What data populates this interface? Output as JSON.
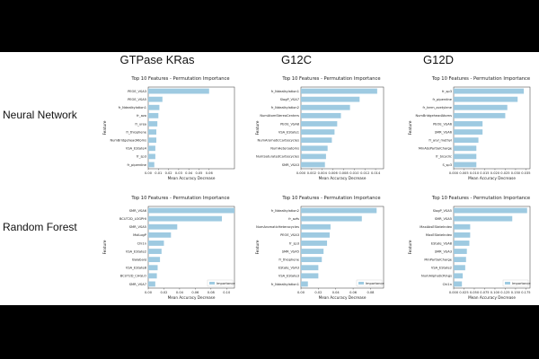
{
  "column_titles": [
    "GTPase KRas",
    "G12C",
    "G12D"
  ],
  "row_labels": [
    "Neural Network",
    "Random Forest"
  ],
  "chart_data": [
    {
      "type": "bar",
      "orientation": "horizontal",
      "title": "Top 10 Features - Permutation Importance",
      "xlabel": "Mean Accuracy Decrease",
      "ylabel": "Feature",
      "xlim": [
        0,
        0.085
      ],
      "xticks": [
        0,
        0.01,
        0.02,
        0.03,
        0.04,
        0.05,
        0.06
      ],
      "xtick_labels": [
        "0.00",
        "0.01",
        "0.02",
        "0.03",
        "0.04",
        "0.05",
        "0.06"
      ],
      "categories": [
        "PEOE_VSA3",
        "PEOE_VSA5",
        "fr_Ndealkylation1",
        "fr_azo",
        "fr_urea",
        "fr_thiophene",
        "NumBridgeheadAtoms",
        "VSA_EState4",
        "fr_sp3",
        "fr_piperdine"
      ],
      "values": [
        0.06,
        0.014,
        0.011,
        0.01,
        0.009,
        0.008,
        0.008,
        0.007,
        0.007,
        0.006
      ],
      "legend": null
    },
    {
      "type": "bar",
      "orientation": "horizontal",
      "title": "Top 10 Features - Permutation Importance",
      "xlabel": "Mean Accuracy Decrease",
      "ylabel": "Feature",
      "xlim": [
        0,
        0.0155
      ],
      "xticks": [
        0,
        0.002,
        0.004,
        0.006,
        0.008,
        0.01,
        0.012,
        0.014
      ],
      "xtick_labels": [
        "0.000",
        "0.002",
        "0.004",
        "0.006",
        "0.008",
        "0.010",
        "0.012",
        "0.014"
      ],
      "categories": [
        "fr_Ndealkylation1",
        "SlogP_VSA7",
        "fr_Ndealkylation2",
        "NumAtomStereoCenters",
        "PEOE_VSA8",
        "VSA_EState1",
        "NumAromaticCarbocycles",
        "NumHeteroatoms",
        "NumSaturatedCarbocycles",
        "SMR_VSA3"
      ],
      "values": [
        0.0143,
        0.011,
        0.0092,
        0.0075,
        0.0068,
        0.0063,
        0.0058,
        0.005,
        0.0047,
        0.0045
      ],
      "legend": null
    },
    {
      "type": "bar",
      "orientation": "horizontal",
      "title": "Top 10 Features - Permutation Importance",
      "xlabel": "Mean Accuracy Decrease",
      "ylabel": "Feature",
      "xlim": [
        0,
        0.037
      ],
      "xticks": [
        0,
        0.005,
        0.01,
        0.015,
        0.02,
        0.025,
        0.03,
        0.035
      ],
      "xtick_labels": [
        "0.000",
        "0.005",
        "0.010",
        "0.015",
        "0.020",
        "0.025",
        "0.030",
        "0.035"
      ],
      "categories": [
        "fr_sp3",
        "fr_piperdine",
        "fr_term_acetylene",
        "NumBridgeheadAtoms",
        "PEOE_VSA6",
        "SMR_VSA6",
        "fr_aryl_methyl",
        "MinAbsPartialCharge",
        "fr_bicyclic",
        "S_sp3"
      ],
      "values": [
        0.034,
        0.031,
        0.026,
        0.025,
        0.014,
        0.014,
        0.012,
        0.011,
        0.011,
        0.011
      ],
      "legend": null
    },
    {
      "type": "bar",
      "orientation": "horizontal",
      "title": "Top 10 Features - Permutation Importance",
      "xlabel": "Mean Accuracy Decrease",
      "ylabel": "Feature",
      "xlim": [
        0,
        0.11
      ],
      "xticks": [
        0,
        0.02,
        0.04,
        0.06,
        0.08,
        0.1
      ],
      "xtick_labels": [
        "0.00",
        "0.02",
        "0.04",
        "0.06",
        "0.08",
        "0.10"
      ],
      "categories": [
        "SMR_VSA6",
        "BCUT2D_LOGPHI",
        "SMR_VSA5",
        "MolLogP",
        "Chi1n",
        "VSA_EState2",
        "BalabanJ",
        "VSA_EState8",
        "BCUT2D_CHGLO",
        "SMR_VSA7"
      ],
      "values": [
        0.11,
        0.094,
        0.037,
        0.029,
        0.02,
        0.017,
        0.015,
        0.012,
        0.011,
        0.009
      ],
      "legend": "Importance"
    },
    {
      "type": "bar",
      "orientation": "horizontal",
      "title": "Top 10 Features - Permutation Importance",
      "xlabel": "Mean Accuracy Decrease",
      "ylabel": "Feature",
      "xlim": [
        0,
        0.095
      ],
      "xticks": [
        0,
        0.02,
        0.04,
        0.06,
        0.08
      ],
      "xtick_labels": [
        "0.00",
        "0.02",
        "0.04",
        "0.06",
        "0.08"
      ],
      "categories": [
        "fr_Ndealkylation2",
        "fr_azfs",
        "NumAromaticHeterocycles",
        "PEOE_VSA3",
        "fr_sp3",
        "SMR_VSA5",
        "fr_thiophene",
        "EState_VSA3",
        "VSA_EState3",
        "fr_Ndealkylation1"
      ],
      "values": [
        0.087,
        0.07,
        0.034,
        0.033,
        0.03,
        0.026,
        0.024,
        0.02,
        0.02,
        0.008
      ],
      "legend": "Importance"
    },
    {
      "type": "bar",
      "orientation": "horizontal",
      "title": "Top 10 Features - Permutation Importance",
      "xlabel": "Mean Accuracy Decrease",
      "ylabel": "Feature",
      "xlim": [
        0,
        0.185
      ],
      "xticks": [
        0,
        0.025,
        0.05,
        0.075,
        0.1,
        0.125,
        0.15,
        0.175
      ],
      "xtick_labels": [
        "0.000",
        "0.025",
        "0.050",
        "0.075",
        "0.100",
        "0.125",
        "0.150",
        "0.175"
      ],
      "categories": [
        "SlogP_VSA5",
        "SMR_VSA5",
        "MaxAbsEStateIndex",
        "MaxEStateIndex",
        "EState_VSA8",
        "SMR_VSA3",
        "MinPartialCharge",
        "VSA_EState2",
        "NumAliphaticRings",
        "Chi1n"
      ],
      "values": [
        0.178,
        0.142,
        0.04,
        0.04,
        0.038,
        0.032,
        0.03,
        0.028,
        0.022,
        0.02
      ],
      "legend": "Importance"
    }
  ]
}
